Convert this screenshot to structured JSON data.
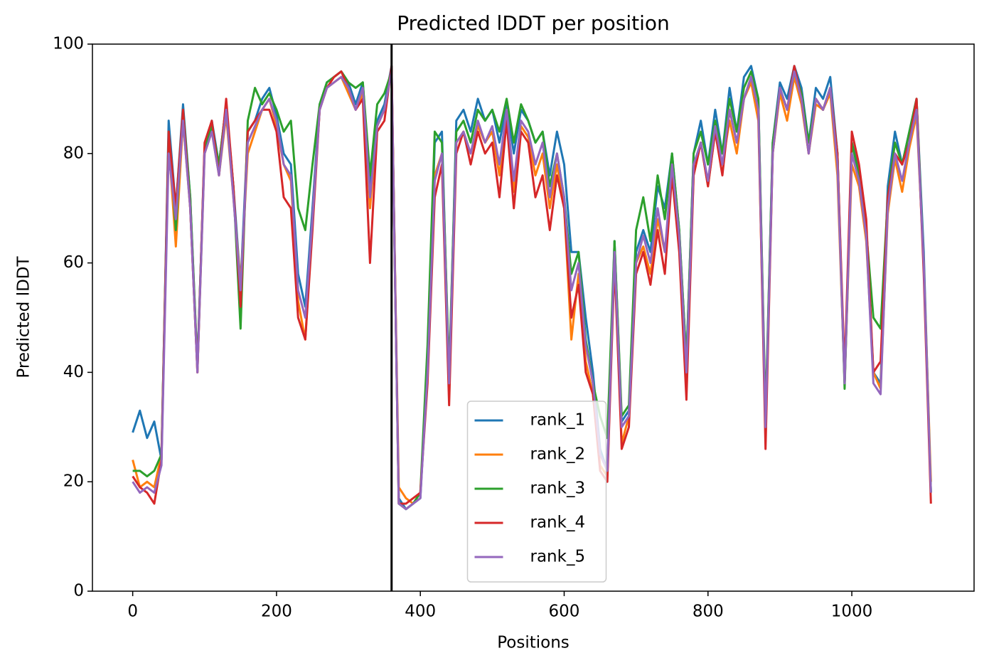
{
  "chart_data": {
    "type": "line",
    "title": "Predicted lDDT per position",
    "xlabel": "Positions",
    "ylabel": "Predicted lDDT",
    "xlim": [
      -56,
      1170
    ],
    "ylim": [
      0,
      100
    ],
    "xticks": [
      0,
      200,
      400,
      600,
      800,
      1000
    ],
    "yticks": [
      0,
      20,
      40,
      60,
      80,
      100
    ],
    "grid": false,
    "legend": "lower center",
    "vlines": [
      {
        "value": 360,
        "color": "#000000"
      }
    ],
    "x": [
      0,
      10,
      20,
      30,
      40,
      50,
      60,
      70,
      80,
      90,
      100,
      110,
      120,
      130,
      140,
      150,
      160,
      170,
      180,
      190,
      200,
      210,
      220,
      230,
      240,
      250,
      260,
      270,
      280,
      290,
      300,
      310,
      320,
      330,
      340,
      350,
      360,
      370,
      380,
      390,
      400,
      410,
      420,
      430,
      440,
      450,
      460,
      470,
      480,
      490,
      500,
      510,
      520,
      530,
      540,
      550,
      560,
      570,
      580,
      590,
      600,
      610,
      620,
      630,
      640,
      650,
      660,
      670,
      680,
      690,
      700,
      710,
      720,
      730,
      740,
      750,
      760,
      770,
      780,
      790,
      800,
      810,
      820,
      830,
      840,
      850,
      860,
      870,
      880,
      890,
      900,
      910,
      920,
      930,
      940,
      950,
      960,
      970,
      980,
      990,
      1000,
      1010,
      1020,
      1030,
      1040,
      1050,
      1060,
      1070,
      1080,
      1090,
      1100,
      1110
    ],
    "series": [
      {
        "name": "rank_1",
        "color": "#1f77b4",
        "values": [
          29,
          33,
          28,
          31,
          24,
          86,
          70,
          89,
          72,
          41,
          81,
          86,
          78,
          89,
          74,
          56,
          84,
          86,
          90,
          92,
          87,
          80,
          78,
          58,
          52,
          70,
          89,
          93,
          94,
          95,
          93,
          89,
          93,
          74,
          86,
          89,
          96,
          17,
          15,
          16,
          17,
          42,
          82,
          84,
          38,
          86,
          88,
          84,
          90,
          86,
          88,
          82,
          89,
          80,
          88,
          86,
          82,
          84,
          76,
          84,
          78,
          62,
          62,
          50,
          40,
          26,
          22,
          64,
          31,
          33,
          62,
          66,
          62,
          74,
          70,
          80,
          66,
          42,
          80,
          86,
          78,
          88,
          80,
          92,
          84,
          94,
          96,
          90,
          31,
          82,
          93,
          90,
          96,
          92,
          82,
          92,
          90,
          94,
          80,
          38,
          82,
          77,
          66,
          40,
          38,
          74,
          84,
          78,
          84,
          90,
          62,
          18
        ]
      },
      {
        "name": "rank_2",
        "color": "#ff7f0e",
        "values": [
          24,
          19,
          20,
          19,
          25,
          82,
          63,
          86,
          70,
          40,
          80,
          84,
          76,
          87,
          72,
          56,
          80,
          84,
          88,
          90,
          85,
          78,
          75,
          53,
          46,
          68,
          88,
          92,
          93,
          94,
          91,
          88,
          91,
          70,
          85,
          88,
          95,
          19,
          17,
          16,
          18,
          40,
          76,
          80,
          36,
          82,
          84,
          80,
          85,
          82,
          84,
          76,
          88,
          73,
          85,
          83,
          76,
          80,
          70,
          78,
          70,
          46,
          58,
          42,
          36,
          23,
          21,
          62,
          27,
          32,
          60,
          63,
          58,
          68,
          62,
          76,
          64,
          40,
          76,
          82,
          74,
          84,
          78,
          86,
          80,
          90,
          93,
          86,
          30,
          80,
          91,
          86,
          94,
          89,
          80,
          89,
          88,
          91,
          76,
          38,
          78,
          74,
          64,
          40,
          37,
          69,
          79,
          73,
          81,
          87,
          60,
          20
        ]
      },
      {
        "name": "rank_3",
        "color": "#2ca02c",
        "values": [
          22,
          22,
          21,
          22,
          25,
          84,
          66,
          88,
          72,
          41,
          81,
          85,
          78,
          89,
          74,
          48,
          86,
          92,
          89,
          91,
          88,
          84,
          86,
          70,
          66,
          78,
          89,
          93,
          94,
          95,
          93,
          92,
          93,
          76,
          89,
          91,
          95,
          16,
          15,
          16,
          18,
          45,
          84,
          82,
          40,
          84,
          86,
          82,
          88,
          86,
          88,
          84,
          90,
          82,
          89,
          86,
          82,
          84,
          74,
          80,
          72,
          58,
          62,
          46,
          38,
          32,
          28,
          64,
          32,
          34,
          66,
          72,
          64,
          76,
          68,
          80,
          66,
          42,
          80,
          84,
          78,
          86,
          80,
          90,
          84,
          92,
          95,
          90,
          32,
          82,
          92,
          88,
          95,
          91,
          82,
          90,
          88,
          92,
          80,
          37,
          82,
          76,
          66,
          50,
          48,
          72,
          82,
          78,
          84,
          90,
          60,
          18
        ]
      },
      {
        "name": "rank_4",
        "color": "#d62728",
        "values": [
          21,
          19,
          18,
          16,
          24,
          84,
          70,
          88,
          70,
          40,
          82,
          86,
          76,
          90,
          74,
          52,
          84,
          86,
          88,
          88,
          84,
          72,
          70,
          50,
          46,
          66,
          88,
          92,
          94,
          95,
          92,
          88,
          90,
          60,
          84,
          86,
          96,
          16,
          16,
          17,
          18,
          38,
          72,
          78,
          34,
          80,
          84,
          78,
          84,
          80,
          82,
          72,
          86,
          70,
          84,
          82,
          72,
          76,
          66,
          76,
          70,
          50,
          56,
          40,
          36,
          22,
          20,
          60,
          26,
          30,
          58,
          62,
          56,
          66,
          58,
          76,
          62,
          35,
          76,
          82,
          74,
          84,
          76,
          88,
          82,
          90,
          94,
          88,
          26,
          80,
          92,
          88,
          96,
          90,
          80,
          90,
          88,
          92,
          80,
          40,
          84,
          78,
          68,
          40,
          42,
          72,
          80,
          78,
          82,
          90,
          58,
          16
        ]
      },
      {
        "name": "rank_5",
        "color": "#9467bd",
        "values": [
          20,
          18,
          19,
          18,
          23,
          80,
          68,
          86,
          70,
          40,
          80,
          84,
          76,
          88,
          72,
          55,
          82,
          85,
          88,
          90,
          86,
          78,
          76,
          55,
          50,
          68,
          88,
          92,
          93,
          94,
          92,
          88,
          92,
          72,
          85,
          88,
          95,
          16,
          15,
          16,
          17,
          40,
          75,
          80,
          38,
          82,
          84,
          80,
          86,
          82,
          85,
          78,
          88,
          75,
          86,
          84,
          78,
          82,
          72,
          80,
          72,
          55,
          60,
          45,
          38,
          25,
          22,
          62,
          30,
          32,
          60,
          65,
          60,
          70,
          62,
          78,
          65,
          40,
          78,
          82,
          75,
          85,
          78,
          88,
          82,
          90,
          94,
          88,
          30,
          80,
          92,
          88,
          95,
          90,
          80,
          90,
          88,
          92,
          78,
          38,
          80,
          75,
          65,
          38,
          36,
          70,
          80,
          75,
          82,
          88,
          60,
          18
        ]
      }
    ]
  }
}
